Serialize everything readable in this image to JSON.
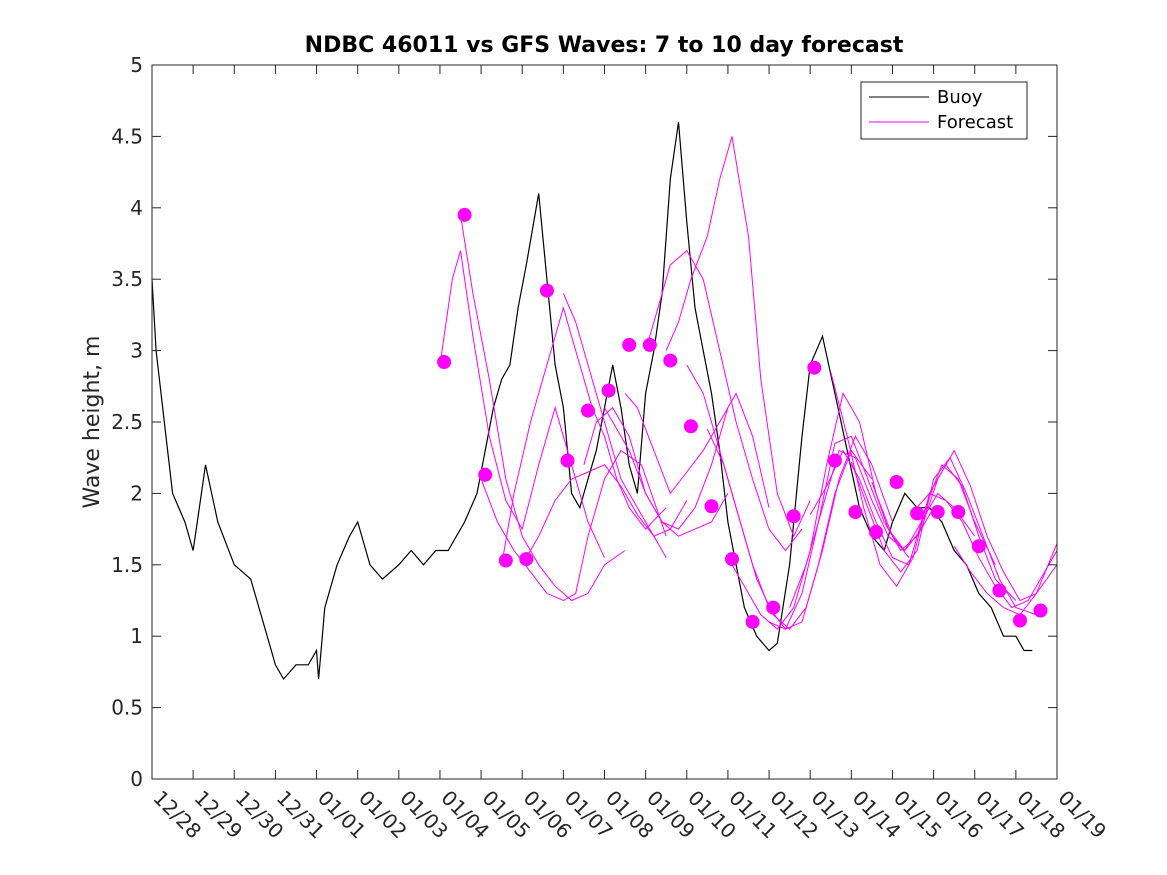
{
  "chart_data": {
    "type": "line",
    "title": "NDBC 46011 vs GFS Waves: 7 to 10 day forecast",
    "xlabel": "",
    "ylabel": "Wave height, m",
    "xlim": [
      0,
      22
    ],
    "ylim": [
      0,
      5
    ],
    "yticks": [
      0,
      0.5,
      1,
      1.5,
      2,
      2.5,
      3,
      3.5,
      4,
      4.5,
      5
    ],
    "ytick_labels": [
      "0",
      "0.5",
      "1",
      "1.5",
      "2",
      "2.5",
      "3",
      "3.5",
      "4",
      "4.5",
      "5"
    ],
    "xtick_labels": [
      "12/28",
      "12/29",
      "12/30",
      "12/31",
      "01/01",
      "01/02",
      "01/03",
      "01/04",
      "01/05",
      "01/06",
      "01/07",
      "01/08",
      "01/09",
      "01/10",
      "01/11",
      "01/12",
      "01/13",
      "01/14",
      "01/15",
      "01/16",
      "01/17",
      "01/18",
      "01/19"
    ],
    "legend": [
      {
        "label": "Buoy",
        "color": "#000000"
      },
      {
        "label": "Forecast",
        "color": "#ff00ff"
      }
    ],
    "legend_position": "top-right",
    "buoy_color": "#000000",
    "forecast_color": "#ff00ff",
    "buoy": {
      "name": "Buoy",
      "x": [
        0,
        0.1,
        0.3,
        0.5,
        0.8,
        1.0,
        1.1,
        1.3,
        1.6,
        2.0,
        2.4,
        2.8,
        3.0,
        3.2,
        3.5,
        3.8,
        4.0,
        4.05,
        4.2,
        4.5,
        4.8,
        5.0,
        5.3,
        5.6,
        6.0,
        6.3,
        6.6,
        6.9,
        7.2,
        7.4,
        7.6,
        7.9,
        8.1,
        8.3,
        8.5,
        8.7,
        8.9,
        9.1,
        9.4,
        9.6,
        9.8,
        10.0,
        10.2,
        10.4,
        10.6,
        10.8,
        11.0,
        11.2,
        11.4,
        11.6,
        11.8,
        12.0,
        12.2,
        12.4,
        12.6,
        12.8,
        13.0,
        13.2,
        13.4,
        13.6,
        13.8,
        14.0,
        14.2,
        14.4,
        14.7,
        15.0,
        15.2,
        15.5,
        15.8,
        16.0,
        16.3,
        16.6,
        16.9,
        17.2,
        17.5,
        17.8,
        18.0,
        18.3,
        18.6,
        18.9,
        19.2,
        19.5,
        19.8,
        20.1,
        20.4,
        20.7,
        21.0,
        21.2,
        21.4
      ],
      "values": [
        3.5,
        3.0,
        2.5,
        2.0,
        1.8,
        1.6,
        1.8,
        2.2,
        1.8,
        1.5,
        1.4,
        1.0,
        0.8,
        0.7,
        0.8,
        0.8,
        0.9,
        0.7,
        1.2,
        1.5,
        1.7,
        1.8,
        1.5,
        1.4,
        1.5,
        1.6,
        1.5,
        1.6,
        1.6,
        1.7,
        1.8,
        2.0,
        2.3,
        2.6,
        2.8,
        2.9,
        3.3,
        3.6,
        4.1,
        3.5,
        2.9,
        2.6,
        2.0,
        1.9,
        2.1,
        2.3,
        2.6,
        2.9,
        2.6,
        2.2,
        2.0,
        2.7,
        3.0,
        3.4,
        4.2,
        4.6,
        3.9,
        3.3,
        3.0,
        2.7,
        2.3,
        1.8,
        1.5,
        1.2,
        1.0,
        0.9,
        0.95,
        1.5,
        2.4,
        2.9,
        3.1,
        2.7,
        2.3,
        1.9,
        1.7,
        1.6,
        1.8,
        2.0,
        1.9,
        1.9,
        1.8,
        1.6,
        1.5,
        1.3,
        1.2,
        1.0,
        1.0,
        0.9,
        0.9
      ]
    },
    "forecast_series": [
      {
        "name": "Forecast",
        "x": [
          7.0,
          7.3,
          7.5,
          7.8,
          8.2,
          8.6,
          9.0,
          9.4,
          9.8,
          10.2,
          10.6,
          11.0
        ],
        "values": [
          2.9,
          3.5,
          3.7,
          3.1,
          2.4,
          1.95,
          1.75,
          2.2,
          2.6,
          2.2,
          1.8,
          1.55
        ]
      },
      {
        "name": "Forecast",
        "x": [
          7.5,
          7.8,
          8.2,
          8.6,
          9.0,
          9.4,
          9.8,
          10.2,
          10.6,
          11.0,
          11.5
        ],
        "values": [
          3.95,
          3.4,
          2.8,
          2.1,
          1.7,
          1.5,
          1.35,
          1.25,
          1.3,
          1.5,
          1.6
        ]
      },
      {
        "name": "Forecast",
        "x": [
          8.0,
          8.4,
          8.8,
          9.2,
          9.6,
          10.0,
          10.3,
          10.6,
          11.0,
          11.4,
          11.9,
          12.5
        ],
        "values": [
          2.1,
          1.8,
          1.6,
          1.45,
          1.3,
          1.25,
          1.3,
          1.7,
          2.1,
          2.3,
          2.2,
          1.7
        ]
      },
      {
        "name": "Forecast",
        "x": [
          8.5,
          8.8,
          9.2,
          9.6,
          10.0,
          10.3,
          10.7,
          11.0,
          11.3,
          11.6,
          12.0,
          12.5
        ],
        "values": [
          1.5,
          2.0,
          2.5,
          2.9,
          3.3,
          3.0,
          2.6,
          2.4,
          2.1,
          1.9,
          1.75,
          1.9
        ]
      },
      {
        "name": "Forecast",
        "x": [
          9.0,
          9.4,
          9.8,
          10.2,
          10.6,
          11.0,
          11.4,
          11.8,
          12.2,
          12.5
        ],
        "values": [
          1.5,
          1.7,
          1.95,
          2.1,
          2.15,
          2.2,
          2.05,
          1.85,
          1.7,
          1.55
        ]
      },
      {
        "name": "Forecast",
        "x": [
          10.0,
          10.3,
          10.6,
          11.0,
          11.4,
          11.8,
          12.2,
          12.6,
          13.0
        ],
        "values": [
          3.4,
          3.2,
          2.9,
          2.5,
          2.1,
          1.9,
          1.7,
          1.75,
          1.95
        ]
      },
      {
        "name": "Forecast",
        "x": [
          10.5,
          10.8,
          11.2,
          11.6,
          12.0,
          12.4,
          12.8,
          13.2,
          13.6,
          14.0
        ],
        "values": [
          2.2,
          2.5,
          2.6,
          2.4,
          2.0,
          1.8,
          1.7,
          1.75,
          1.8,
          2.0
        ]
      },
      {
        "name": "Forecast",
        "x": [
          11.0,
          11.3,
          11.6,
          12.0,
          12.4,
          12.8,
          13.2,
          13.6,
          14.0
        ],
        "values": [
          2.6,
          2.45,
          2.3,
          2.0,
          1.8,
          1.75,
          1.9,
          2.2,
          2.6
        ]
      },
      {
        "name": "Forecast",
        "x": [
          11.5,
          11.8,
          12.2,
          12.6,
          13.0,
          13.4,
          13.8,
          14.2,
          14.6,
          15.0
        ],
        "values": [
          2.7,
          2.6,
          2.3,
          2.0,
          2.15,
          2.3,
          2.5,
          2.7,
          2.4,
          1.9
        ]
      },
      {
        "name": "Forecast",
        "x": [
          12.0,
          12.3,
          12.6,
          13.0,
          13.4,
          13.8,
          14.2,
          14.6,
          15.0,
          15.4,
          15.8
        ],
        "values": [
          3.0,
          3.3,
          3.6,
          3.7,
          3.5,
          3.0,
          2.5,
          2.1,
          1.75,
          1.6,
          1.75
        ]
      },
      {
        "name": "Forecast",
        "x": [
          12.5,
          12.8,
          13.1,
          13.5,
          13.8,
          14.1,
          14.5,
          14.8,
          15.2,
          15.6,
          16.0
        ],
        "values": [
          3.0,
          3.2,
          3.5,
          3.8,
          4.2,
          4.5,
          3.8,
          2.8,
          2.0,
          1.7,
          1.95
        ]
      },
      {
        "name": "Forecast",
        "x": [
          13.0,
          13.4,
          13.8,
          14.2,
          14.6,
          15.0,
          15.4,
          15.8,
          16.2,
          16.6,
          17.0,
          17.5
        ],
        "values": [
          2.9,
          2.7,
          2.3,
          1.9,
          1.5,
          1.2,
          1.05,
          1.1,
          1.5,
          2.0,
          2.3,
          2.1
        ]
      },
      {
        "name": "Forecast",
        "x": [
          13.5,
          13.9,
          14.3,
          14.7,
          15.1,
          15.5,
          15.9,
          16.3,
          16.7,
          17.1,
          17.5,
          18.0
        ],
        "values": [
          2.45,
          2.2,
          1.8,
          1.4,
          1.15,
          1.05,
          1.2,
          1.6,
          2.1,
          2.4,
          2.2,
          1.8
        ]
      },
      {
        "name": "Forecast",
        "x": [
          14.0,
          14.4,
          14.8,
          15.2,
          15.6,
          16.0,
          16.4,
          16.8,
          17.2,
          17.6,
          18.0,
          18.4
        ],
        "values": [
          1.55,
          1.35,
          1.15,
          1.05,
          1.2,
          1.6,
          2.2,
          2.7,
          2.5,
          2.0,
          1.7,
          1.55
        ]
      },
      {
        "name": "Forecast",
        "x": [
          15.0,
          15.4,
          15.8,
          16.2,
          16.6,
          17.0,
          17.4,
          17.8,
          18.2,
          18.6,
          19.0
        ],
        "values": [
          1.1,
          1.05,
          1.3,
          1.8,
          2.35,
          2.4,
          2.1,
          1.8,
          1.6,
          1.7,
          1.9
        ]
      },
      {
        "name": "Forecast",
        "x": [
          15.5,
          15.9,
          16.3,
          16.7,
          17.1,
          17.5,
          17.9,
          18.3,
          18.7,
          19.1,
          19.5,
          20.0
        ],
        "values": [
          1.2,
          1.5,
          1.9,
          2.3,
          2.25,
          1.95,
          1.7,
          1.6,
          1.8,
          2.0,
          1.9,
          1.7
        ]
      },
      {
        "name": "Forecast",
        "x": [
          16.0,
          16.4,
          16.8,
          17.2,
          17.6,
          18.0,
          18.4,
          18.8,
          19.2,
          19.6,
          20.0,
          20.5
        ],
        "values": [
          1.85,
          2.05,
          2.3,
          2.1,
          1.8,
          1.55,
          1.5,
          1.9,
          2.2,
          2.1,
          1.8,
          1.5
        ]
      },
      {
        "name": "Forecast",
        "x": [
          16.5,
          16.9,
          17.3,
          17.7,
          18.1,
          18.5,
          18.9,
          19.3,
          19.7,
          20.1,
          20.5,
          21.0
        ],
        "values": [
          2.85,
          2.4,
          1.9,
          1.5,
          1.35,
          1.55,
          2.0,
          2.2,
          2.05,
          1.7,
          1.4,
          1.25
        ]
      },
      {
        "name": "Forecast",
        "x": [
          17.0,
          17.4,
          17.8,
          18.2,
          18.6,
          19.0,
          19.4,
          19.8,
          20.2,
          20.6,
          21.0,
          21.5
        ],
        "values": [
          2.22,
          1.9,
          1.6,
          1.45,
          1.6,
          2.1,
          2.25,
          2.0,
          1.7,
          1.4,
          1.2,
          1.15
        ]
      },
      {
        "name": "Forecast",
        "x": [
          17.5,
          17.9,
          18.3,
          18.7,
          19.1,
          19.5,
          19.9,
          20.3,
          20.7,
          21.1,
          21.5,
          22.0
        ],
        "values": [
          2.08,
          1.75,
          1.6,
          1.75,
          2.1,
          2.3,
          2.05,
          1.7,
          1.45,
          1.25,
          1.3,
          1.65
        ]
      },
      {
        "name": "Forecast",
        "x": [
          18.5,
          18.9,
          19.3,
          19.7,
          20.1,
          20.5,
          20.9,
          21.3,
          21.7,
          22.0
        ],
        "values": [
          1.87,
          2.0,
          1.95,
          1.8,
          1.55,
          1.35,
          1.2,
          1.25,
          1.45,
          1.6
        ]
      },
      {
        "name": "Forecast",
        "x": [
          19.5,
          19.9,
          20.3,
          20.7,
          21.1,
          21.5,
          22.0
        ],
        "values": [
          1.63,
          1.45,
          1.3,
          1.2,
          1.15,
          1.3,
          1.5
        ]
      }
    ],
    "forecast_start_points": {
      "x": [
        7.1,
        7.6,
        8.1,
        8.6,
        9.1,
        9.6,
        10.1,
        10.6,
        11.1,
        11.6,
        12.1,
        12.6,
        13.1,
        13.6,
        14.1,
        14.6,
        15.1,
        15.6,
        16.1,
        16.6,
        17.1,
        17.6,
        18.1,
        18.6,
        19.1,
        19.6,
        20.1,
        20.6,
        21.1,
        21.6
      ],
      "values": [
        2.92,
        3.95,
        2.13,
        1.53,
        1.54,
        3.42,
        2.23,
        2.58,
        2.72,
        3.04,
        3.04,
        2.93,
        2.47,
        1.91,
        1.54,
        1.1,
        1.2,
        1.84,
        2.88,
        2.23,
        1.87,
        1.73,
        2.08,
        1.86,
        1.87,
        1.87,
        1.63,
        1.32,
        1.11,
        1.18
      ]
    }
  }
}
